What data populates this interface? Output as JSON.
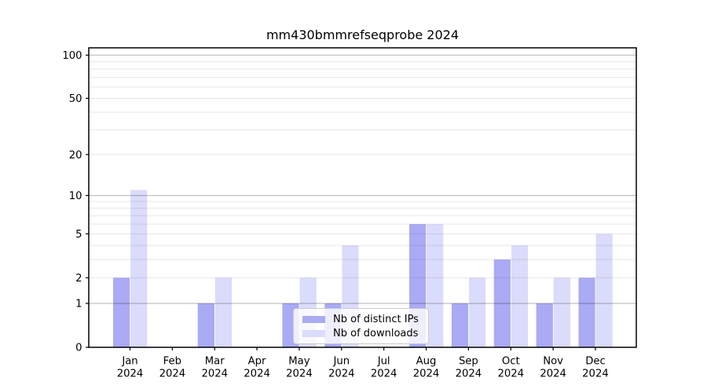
{
  "page": {
    "background": "#ffffff"
  },
  "chart_data": {
    "type": "bar",
    "title": "mm430bmmrefseqprobe 2024",
    "categories": [
      "Jan 2024",
      "Feb 2024",
      "Mar 2024",
      "Apr 2024",
      "May 2024",
      "Jun 2024",
      "Jul 2024",
      "Aug 2024",
      "Sep 2024",
      "Oct 2024",
      "Nov 2024",
      "Dec 2024"
    ],
    "x_tick_line1": [
      "Jan",
      "Feb",
      "Mar",
      "Apr",
      "May",
      "Jun",
      "Jul",
      "Aug",
      "Sep",
      "Oct",
      "Nov",
      "Dec"
    ],
    "x_tick_line2": [
      "2024",
      "2024",
      "2024",
      "2024",
      "2024",
      "2024",
      "2024",
      "2024",
      "2024",
      "2024",
      "2024",
      "2024"
    ],
    "series": [
      {
        "name": "Nb of distinct IPs",
        "color": "#aaaaf5",
        "values": [
          2,
          0,
          1,
          0,
          1,
          1,
          0,
          6,
          1,
          3,
          1,
          2
        ]
      },
      {
        "name": "Nb of downloads",
        "color": "#dbdbfb",
        "values": [
          11,
          0,
          2,
          0,
          2,
          4,
          0,
          6,
          2,
          4,
          2,
          5
        ]
      }
    ],
    "xlabel": "",
    "ylabel": "",
    "yscale": "log1p",
    "ylim": [
      0,
      112
    ],
    "y_tick_values": [
      0,
      1,
      2,
      5,
      10,
      20,
      50,
      100
    ],
    "y_tick_labels": [
      "0",
      "1",
      "2",
      "5",
      "10",
      "20",
      "50",
      "100"
    ],
    "grid": {
      "major_values": [
        1,
        10,
        100
      ],
      "minor_values": [
        2,
        3,
        4,
        5,
        6,
        7,
        8,
        9,
        20,
        30,
        40,
        50,
        60,
        70,
        80,
        90
      ],
      "major_color": "rgba(0,0,0,0.30)",
      "minor_color": "rgba(0,0,0,0.095)"
    },
    "legend": {
      "position": "lower center"
    },
    "axis_color": "#000000",
    "text_color": "#000000",
    "tick_font_size": 13.2,
    "title_font_size": 16
  }
}
